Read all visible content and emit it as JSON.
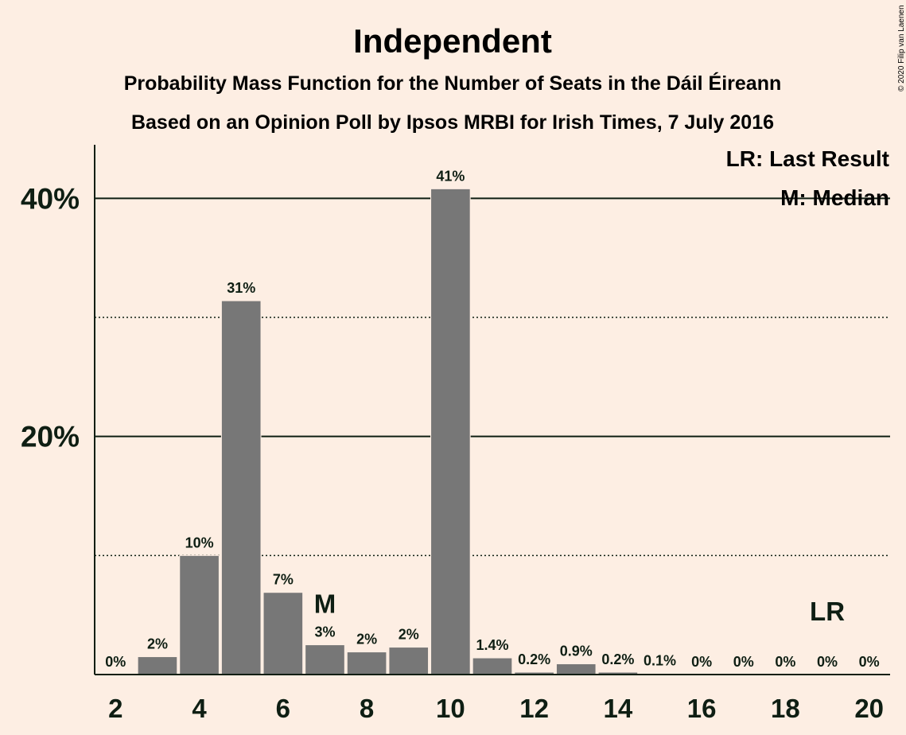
{
  "chart_data": {
    "type": "bar",
    "title": "Independent",
    "subtitle_1": "Probability Mass Function for the Number of Seats in the Dáil Éireann",
    "subtitle_2": "Based on an Opinion Poll by Ipsos MRBI for Irish Times, 7 July 2016",
    "xlabel": "",
    "ylabel": "",
    "categories": [
      2,
      3,
      4,
      5,
      6,
      7,
      8,
      9,
      10,
      11,
      12,
      13,
      14,
      15,
      16,
      17,
      18,
      19,
      20
    ],
    "values": [
      0,
      1.5,
      10,
      31.4,
      6.9,
      2.5,
      1.9,
      2.3,
      40.8,
      1.4,
      0.2,
      0.9,
      0.2,
      0.1,
      0,
      0,
      0,
      0,
      0
    ],
    "value_labels": [
      "0%",
      "2%",
      "10%",
      "31%",
      "7%",
      "3%",
      "2%",
      "2%",
      "41%",
      "1.4%",
      "0.2%",
      "0.9%",
      "0.2%",
      "0.1%",
      "0%",
      "0%",
      "0%",
      "0%",
      "0%"
    ],
    "x_tick_labels": [
      "2",
      "4",
      "6",
      "8",
      "10",
      "12",
      "14",
      "16",
      "18",
      "20"
    ],
    "x_tick_values": [
      2,
      4,
      6,
      8,
      10,
      12,
      14,
      16,
      18,
      20
    ],
    "y_tick_labels": [
      "20%",
      "40%"
    ],
    "y_tick_values": [
      20,
      40
    ],
    "ylim": [
      0,
      44.5
    ],
    "gridlines_solid": [
      20,
      40
    ],
    "gridlines_dotted": [
      10,
      30
    ],
    "median_seat": 7,
    "median_marker": "M",
    "last_result_seat": 19,
    "last_result_marker": "LR",
    "legend": {
      "placement": "top-right",
      "entries": [
        "LR: Last Result",
        "M: Median"
      ]
    },
    "colors": {
      "background": "#FDEEE3",
      "bar": "#777777",
      "text": "#0E1E13"
    },
    "copyright": "© 2020 Filip van Laenen"
  }
}
